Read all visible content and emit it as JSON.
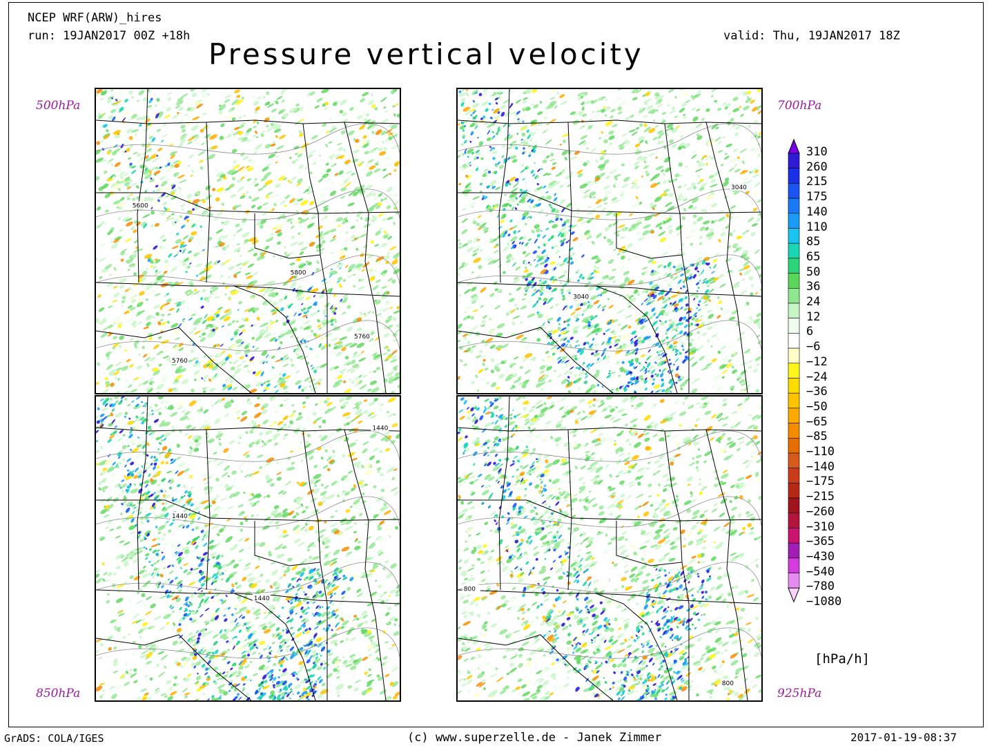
{
  "header": {
    "model": "NCEP WRF(ARW)_hires",
    "run": "run: 19JAN2017 00Z +18h",
    "valid": "valid: Thu, 19JAN2017 18Z",
    "title": "Pressure vertical velocity"
  },
  "panels": [
    {
      "id": "p500",
      "level": "500hPa",
      "contours": [
        {
          "label": "5600",
          "fx": 0.12,
          "fy": 0.39
        },
        {
          "label": "5800",
          "fx": 0.64,
          "fy": 0.61
        },
        {
          "label": "5760",
          "fx": 0.85,
          "fy": 0.82
        },
        {
          "label": "5760",
          "fx": 0.25,
          "fy": 0.9
        }
      ],
      "blue_strength": 0.25,
      "warm_strength": 0.7
    },
    {
      "id": "p700",
      "level": "700hPa",
      "contours": [
        {
          "label": "3040",
          "fx": 0.9,
          "fy": 0.33
        },
        {
          "label": "3040",
          "fx": 0.38,
          "fy": 0.69
        }
      ],
      "blue_strength": 0.85,
      "warm_strength": 0.35
    },
    {
      "id": "p850",
      "level": "850hPa",
      "contours": [
        {
          "label": "1440",
          "fx": 0.91,
          "fy": 0.11
        },
        {
          "label": "1440",
          "fx": 0.25,
          "fy": 0.4
        },
        {
          "label": "1440",
          "fx": 0.52,
          "fy": 0.67
        }
      ],
      "blue_strength": 0.9,
      "warm_strength": 0.45
    },
    {
      "id": "p925",
      "level": "925hPa",
      "contours": [
        {
          "label": "800",
          "fx": 0.02,
          "fy": 0.64
        },
        {
          "label": "800",
          "fx": 0.87,
          "fy": 0.95
        }
      ],
      "blue_strength": 0.75,
      "warm_strength": 0.5
    }
  ],
  "legend": {
    "levels": [
      {
        "label": "310",
        "color": "#7a00e6"
      },
      {
        "label": "260",
        "color": "#2f1ad6"
      },
      {
        "label": "215",
        "color": "#1a2fe6"
      },
      {
        "label": "175",
        "color": "#1a55f0"
      },
      {
        "label": "140",
        "color": "#1a7af5"
      },
      {
        "label": "110",
        "color": "#1a9bf5"
      },
      {
        "label": "85",
        "color": "#1ac3f0"
      },
      {
        "label": "65",
        "color": "#1ad6b4"
      },
      {
        "label": "50",
        "color": "#2ed47a"
      },
      {
        "label": "36",
        "color": "#5ad65a"
      },
      {
        "label": "24",
        "color": "#8ee68e"
      },
      {
        "label": "12",
        "color": "#c8f5c8"
      },
      {
        "label": "6",
        "color": "#eefcee"
      },
      {
        "label": "−6",
        "color": "#ffffff"
      },
      {
        "label": "−12",
        "color": "#ffffc8"
      },
      {
        "label": "−24",
        "color": "#fff51a"
      },
      {
        "label": "−36",
        "color": "#ffdc00"
      },
      {
        "label": "−50",
        "color": "#ffc300"
      },
      {
        "label": "−65",
        "color": "#ffaa00"
      },
      {
        "label": "−85",
        "color": "#f58c00"
      },
      {
        "label": "−110",
        "color": "#e66e00"
      },
      {
        "label": "−140",
        "color": "#d65a1a"
      },
      {
        "label": "−175",
        "color": "#c83c1a"
      },
      {
        "label": "−215",
        "color": "#b42814"
      },
      {
        "label": "−260",
        "color": "#a0141e"
      },
      {
        "label": "−310",
        "color": "#b4143c"
      },
      {
        "label": "−365",
        "color": "#c8146e"
      },
      {
        "label": "−430",
        "color": "#a01eb4"
      },
      {
        "label": "−540",
        "color": "#d23cdc"
      },
      {
        "label": "−780",
        "color": "#e68cf0"
      },
      {
        "label": "−1080",
        "color": "#fad2fa"
      }
    ],
    "units": "[hPa/h]"
  },
  "footer": {
    "software": "GrADS: COLA/IGES",
    "credit": "(c) www.superzelle.de - Janek Zimmer",
    "timestamp": "2017-01-19-08:37"
  }
}
